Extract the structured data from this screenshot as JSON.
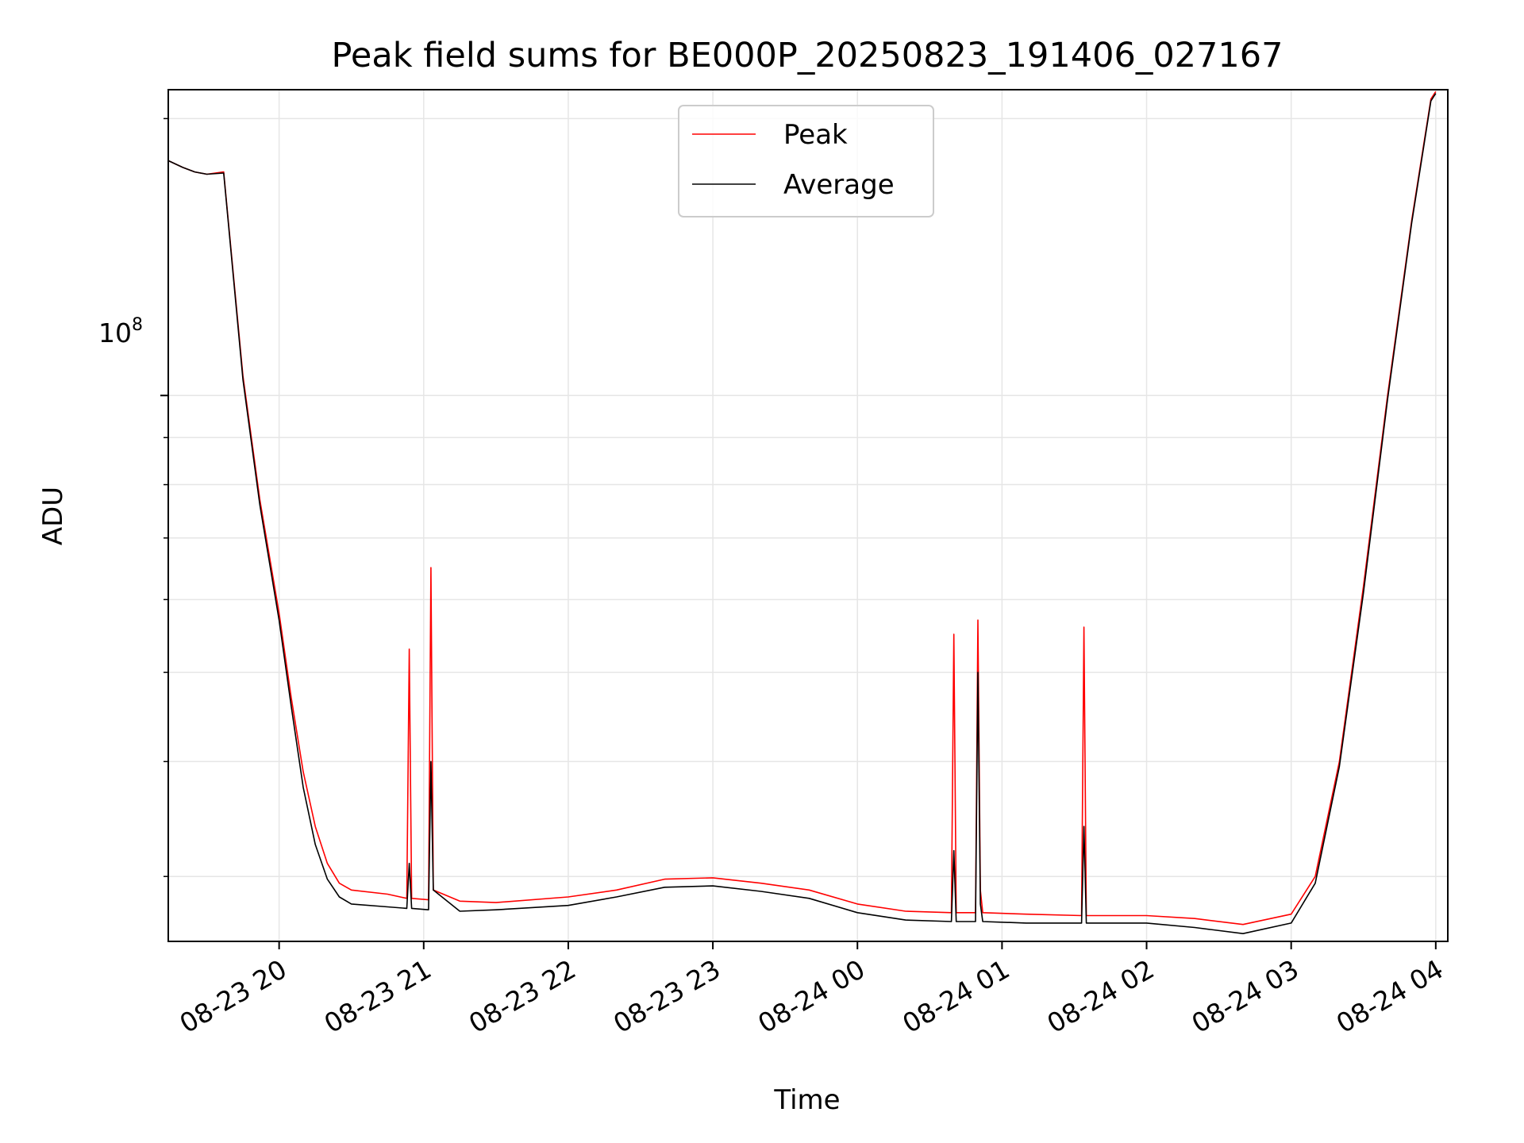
{
  "chart_data": {
    "type": "line",
    "title": "Peak field sums for BE000P_20250823_191406_027167",
    "xlabel": "Time",
    "ylabel": "ADU",
    "y_scale": "log",
    "y_major_tick_label_base": "10",
    "y_major_tick_label_exponent": "8",
    "y_major_tick_value": 100000000,
    "y_minor_ticks": [
      30000000,
      40000000,
      50000000,
      60000000,
      70000000,
      80000000,
      90000000,
      200000000
    ],
    "xlim": [
      "2025-08-23 19:14",
      "2025-08-24 04:05"
    ],
    "ylim": [
      25500000,
      215000000
    ],
    "x_ticks": [
      {
        "value": "2025-08-23 20:00",
        "label": "08-23 20"
      },
      {
        "value": "2025-08-23 21:00",
        "label": "08-23 21"
      },
      {
        "value": "2025-08-23 22:00",
        "label": "08-23 22"
      },
      {
        "value": "2025-08-23 23:00",
        "label": "08-23 23"
      },
      {
        "value": "2025-08-24 00:00",
        "label": "08-24 00"
      },
      {
        "value": "2025-08-24 01:00",
        "label": "08-24 01"
      },
      {
        "value": "2025-08-24 02:00",
        "label": "08-24 02"
      },
      {
        "value": "2025-08-24 03:00",
        "label": "08-24 03"
      },
      {
        "value": "2025-08-24 04:00",
        "label": "08-24 04"
      }
    ],
    "grid": true,
    "legend_position": "top-center",
    "series": [
      {
        "name": "Peak",
        "color": "#ff0000",
        "points": [
          [
            "2025-08-23 19:14",
            180000000
          ],
          [
            "2025-08-23 19:20",
            177000000
          ],
          [
            "2025-08-23 19:25",
            175000000
          ],
          [
            "2025-08-23 19:30",
            174000000
          ],
          [
            "2025-08-23 19:37",
            175000000
          ],
          [
            "2025-08-23 19:45",
            105000000
          ],
          [
            "2025-08-23 19:52",
            77000000
          ],
          [
            "2025-08-23 20:00",
            58000000
          ],
          [
            "2025-08-23 20:05",
            47000000
          ],
          [
            "2025-08-23 20:10",
            39000000
          ],
          [
            "2025-08-23 20:15",
            34000000
          ],
          [
            "2025-08-23 20:20",
            31000000
          ],
          [
            "2025-08-23 20:25",
            29500000
          ],
          [
            "2025-08-23 20:30",
            29000000
          ],
          [
            "2025-08-23 20:45",
            28700000
          ],
          [
            "2025-08-23 20:53",
            28400000
          ],
          [
            "2025-08-23 20:54",
            53000000
          ],
          [
            "2025-08-23 20:55",
            28400000
          ],
          [
            "2025-08-23 21:02",
            28300000
          ],
          [
            "2025-08-23 21:03",
            65000000
          ],
          [
            "2025-08-23 21:04",
            29000000
          ],
          [
            "2025-08-23 21:15",
            28200000
          ],
          [
            "2025-08-23 21:30",
            28100000
          ],
          [
            "2025-08-23 22:00",
            28500000
          ],
          [
            "2025-08-23 22:20",
            29000000
          ],
          [
            "2025-08-23 22:40",
            29800000
          ],
          [
            "2025-08-23 23:00",
            29900000
          ],
          [
            "2025-08-23 23:20",
            29500000
          ],
          [
            "2025-08-23 23:40",
            29000000
          ],
          [
            "2025-08-24 00:00",
            28000000
          ],
          [
            "2025-08-24 00:20",
            27500000
          ],
          [
            "2025-08-24 00:39",
            27400000
          ],
          [
            "2025-08-24 00:40",
            55000000
          ],
          [
            "2025-08-24 00:41",
            27400000
          ],
          [
            "2025-08-24 00:49",
            27400000
          ],
          [
            "2025-08-24 00:50",
            57000000
          ],
          [
            "2025-08-24 00:51",
            29000000
          ],
          [
            "2025-08-24 00:52",
            27400000
          ],
          [
            "2025-08-24 01:10",
            27300000
          ],
          [
            "2025-08-24 01:33",
            27200000
          ],
          [
            "2025-08-24 01:34",
            56000000
          ],
          [
            "2025-08-24 01:35",
            27200000
          ],
          [
            "2025-08-24 02:00",
            27200000
          ],
          [
            "2025-08-24 02:20",
            27000000
          ],
          [
            "2025-08-24 02:40",
            26600000
          ],
          [
            "2025-08-24 03:00",
            27300000
          ],
          [
            "2025-08-24 03:10",
            30000000
          ],
          [
            "2025-08-24 03:20",
            40000000
          ],
          [
            "2025-08-24 03:30",
            62000000
          ],
          [
            "2025-08-24 03:40",
            100000000
          ],
          [
            "2025-08-24 03:50",
            155000000
          ],
          [
            "2025-08-24 03:58",
            210000000
          ],
          [
            "2025-08-24 04:00",
            214000000
          ]
        ]
      },
      {
        "name": "Average",
        "color": "#000000",
        "points": [
          [
            "2025-08-23 19:14",
            180000000
          ],
          [
            "2025-08-23 19:20",
            177000000
          ],
          [
            "2025-08-23 19:25",
            175000000
          ],
          [
            "2025-08-23 19:30",
            174000000
          ],
          [
            "2025-08-23 19:37",
            174500000
          ],
          [
            "2025-08-23 19:45",
            104000000
          ],
          [
            "2025-08-23 19:52",
            76000000
          ],
          [
            "2025-08-23 20:00",
            57000000
          ],
          [
            "2025-08-23 20:05",
            46000000
          ],
          [
            "2025-08-23 20:10",
            37500000
          ],
          [
            "2025-08-23 20:15",
            32500000
          ],
          [
            "2025-08-23 20:20",
            29800000
          ],
          [
            "2025-08-23 20:25",
            28500000
          ],
          [
            "2025-08-23 20:30",
            28000000
          ],
          [
            "2025-08-23 20:45",
            27800000
          ],
          [
            "2025-08-23 20:53",
            27700000
          ],
          [
            "2025-08-23 20:54",
            31000000
          ],
          [
            "2025-08-23 20:55",
            27700000
          ],
          [
            "2025-08-23 21:02",
            27600000
          ],
          [
            "2025-08-23 21:03",
            40000000
          ],
          [
            "2025-08-23 21:04",
            29000000
          ],
          [
            "2025-08-23 21:15",
            27500000
          ],
          [
            "2025-08-23 21:30",
            27600000
          ],
          [
            "2025-08-23 22:00",
            27900000
          ],
          [
            "2025-08-23 22:20",
            28500000
          ],
          [
            "2025-08-23 22:40",
            29200000
          ],
          [
            "2025-08-23 23:00",
            29300000
          ],
          [
            "2025-08-23 23:20",
            28900000
          ],
          [
            "2025-08-23 23:40",
            28400000
          ],
          [
            "2025-08-24 00:00",
            27400000
          ],
          [
            "2025-08-24 00:20",
            26900000
          ],
          [
            "2025-08-24 00:39",
            26800000
          ],
          [
            "2025-08-24 00:40",
            32000000
          ],
          [
            "2025-08-24 00:41",
            26800000
          ],
          [
            "2025-08-24 00:49",
            26800000
          ],
          [
            "2025-08-24 00:50",
            50000000
          ],
          [
            "2025-08-24 00:51",
            28000000
          ],
          [
            "2025-08-24 00:52",
            26800000
          ],
          [
            "2025-08-24 01:10",
            26700000
          ],
          [
            "2025-08-24 01:33",
            26700000
          ],
          [
            "2025-08-24 01:34",
            34000000
          ],
          [
            "2025-08-24 01:35",
            26700000
          ],
          [
            "2025-08-24 02:00",
            26700000
          ],
          [
            "2025-08-24 02:20",
            26400000
          ],
          [
            "2025-08-24 02:40",
            26000000
          ],
          [
            "2025-08-24 03:00",
            26700000
          ],
          [
            "2025-08-24 03:10",
            29500000
          ],
          [
            "2025-08-24 03:20",
            39500000
          ],
          [
            "2025-08-24 03:30",
            61000000
          ],
          [
            "2025-08-24 03:40",
            99000000
          ],
          [
            "2025-08-24 03:50",
            154000000
          ],
          [
            "2025-08-24 03:58",
            209000000
          ],
          [
            "2025-08-24 04:00",
            213000000
          ]
        ]
      }
    ]
  }
}
